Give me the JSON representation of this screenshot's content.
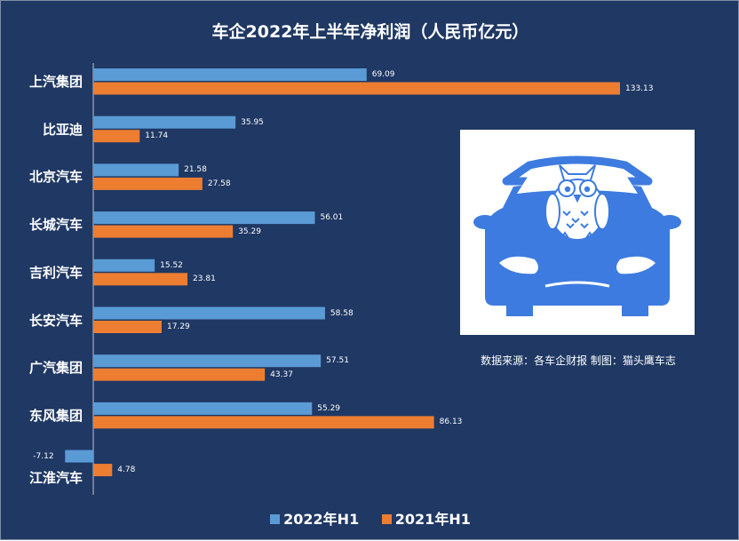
{
  "chart_data": {
    "type": "bar",
    "orientation": "horizontal",
    "title": "车企2022年上半年净利润（人民币亿元）",
    "categories": [
      "上汽集团",
      "比亚迪",
      "北京汽车",
      "长城汽车",
      "吉利汽车",
      "长安汽车",
      "广汽集团",
      "东风集团",
      "江淮汽车"
    ],
    "series": [
      {
        "name": "2022年H1",
        "color": "#5b9bd5",
        "values": [
          69.09,
          35.95,
          21.58,
          56.01,
          15.52,
          58.58,
          57.51,
          55.29,
          -7.12
        ]
      },
      {
        "name": "2021年H1",
        "color": "#ed7d31",
        "values": [
          133.13,
          11.74,
          27.58,
          35.29,
          23.81,
          17.29,
          43.37,
          86.13,
          4.78
        ]
      }
    ],
    "value_labels": [
      [
        "69.09",
        "35.95",
        "21.58",
        "56.01",
        "15.52",
        "58.58",
        "57.51",
        "55.29",
        "-7.12"
      ],
      [
        "133.13",
        "11.74",
        "27.58",
        "35.29",
        "23.81",
        "17.29",
        "43.37",
        "86.13",
        "4.78"
      ]
    ],
    "legend_position": "bottom",
    "grid": false,
    "background": "#1f3864",
    "text_color": "#ffffff"
  },
  "source_note": "数据来源：各车企财报  制图：猫头鹰车志",
  "logo": {
    "icon": "owl-on-car-icon",
    "car_color": "#3d7be0"
  }
}
